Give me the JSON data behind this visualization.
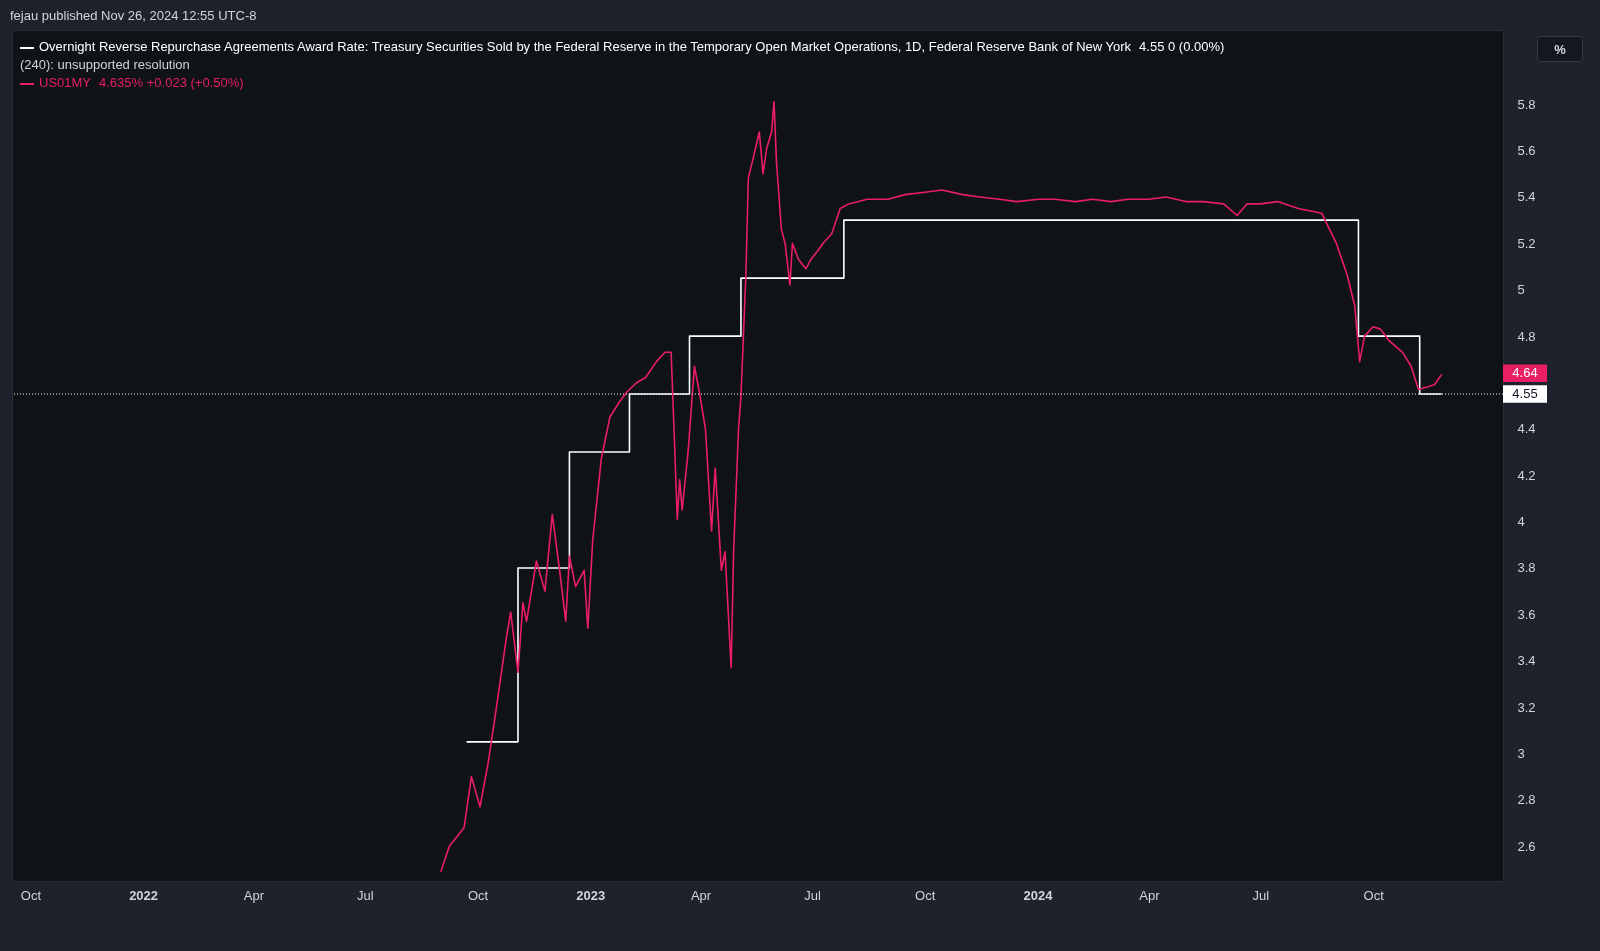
{
  "chart_data": {
    "type": "line",
    "subtitle": "fejau published Nov 26, 2024 12:55 UTC-8",
    "series": [
      {
        "name": "Overnight Reverse Repurchase Agreements Award Rate: Treasury Securities Sold by the Federal Reserve in the Temporary Open Market Operations, 1D, Federal Reserve Bank of New York",
        "type": "step",
        "color": "#ffffff",
        "x": [
          "2022-09-22",
          "2022-11-03",
          "2022-12-15",
          "2023-02-02",
          "2023-03-23",
          "2023-05-04",
          "2023-07-27",
          "2024-09-19",
          "2024-11-08",
          "2024-11-26"
        ],
        "values": [
          3.05,
          3.8,
          4.3,
          4.55,
          4.8,
          5.05,
          5.3,
          4.8,
          4.55,
          4.55
        ]
      },
      {
        "name": "US01MY",
        "color": "#e91e63",
        "x": [
          "2022-09-01",
          "2022-09-08",
          "2022-09-20",
          "2022-09-26",
          "2022-10-03",
          "2022-10-10",
          "2022-10-17",
          "2022-10-24",
          "2022-10-28",
          "2022-11-03",
          "2022-11-07",
          "2022-11-10",
          "2022-11-18",
          "2022-11-25",
          "2022-12-01",
          "2022-12-07",
          "2022-12-12",
          "2022-12-15",
          "2022-12-20",
          "2022-12-27",
          "2022-12-30",
          "2023-01-03",
          "2023-01-10",
          "2023-01-17",
          "2023-01-24",
          "2023-01-31",
          "2023-02-08",
          "2023-02-15",
          "2023-02-24",
          "2023-03-03",
          "2023-03-08",
          "2023-03-10",
          "2023-03-13",
          "2023-03-15",
          "2023-03-17",
          "2023-03-22",
          "2023-03-27",
          "2023-03-31",
          "2023-04-05",
          "2023-04-10",
          "2023-04-13",
          "2023-04-18",
          "2023-04-21",
          "2023-04-26",
          "2023-04-28",
          "2023-05-02",
          "2023-05-04",
          "2023-05-08",
          "2023-05-10",
          "2023-05-15",
          "2023-05-19",
          "2023-05-22",
          "2023-05-25",
          "2023-05-29",
          "2023-05-31",
          "2023-06-02",
          "2023-06-06",
          "2023-06-09",
          "2023-06-13",
          "2023-06-15",
          "2023-06-20",
          "2023-06-26",
          "2023-06-30",
          "2023-07-06",
          "2023-07-10",
          "2023-07-17",
          "2023-07-24",
          "2023-07-31",
          "2023-08-15",
          "2023-09-01",
          "2023-09-15",
          "2023-10-01",
          "2023-10-15",
          "2023-11-01",
          "2023-11-15",
          "2023-12-01",
          "2023-12-15",
          "2024-01-02",
          "2024-01-15",
          "2024-02-01",
          "2024-02-15",
          "2024-03-01",
          "2024-03-15",
          "2024-04-01",
          "2024-04-15",
          "2024-05-01",
          "2024-05-15",
          "2024-06-01",
          "2024-06-12",
          "2024-06-20",
          "2024-07-01",
          "2024-07-15",
          "2024-08-01",
          "2024-08-20",
          "2024-09-01",
          "2024-09-10",
          "2024-09-16",
          "2024-09-20",
          "2024-09-24",
          "2024-10-01",
          "2024-10-07",
          "2024-10-14",
          "2024-10-25",
          "2024-11-01",
          "2024-11-07",
          "2024-11-14",
          "2024-11-20",
          "2024-11-26"
        ],
        "values": [
          2.49,
          2.6,
          2.68,
          2.9,
          2.77,
          2.97,
          3.22,
          3.48,
          3.61,
          3.35,
          3.65,
          3.57,
          3.83,
          3.7,
          4.03,
          3.79,
          3.57,
          3.85,
          3.72,
          3.79,
          3.54,
          3.92,
          4.27,
          4.45,
          4.51,
          4.56,
          4.6,
          4.62,
          4.69,
          4.73,
          4.73,
          4.45,
          4.01,
          4.18,
          4.05,
          4.31,
          4.67,
          4.56,
          4.4,
          3.96,
          4.23,
          3.79,
          3.87,
          3.37,
          3.87,
          4.4,
          4.54,
          5.06,
          5.48,
          5.59,
          5.68,
          5.5,
          5.61,
          5.68,
          5.81,
          5.55,
          5.26,
          5.2,
          5.02,
          5.2,
          5.13,
          5.09,
          5.13,
          5.17,
          5.2,
          5.24,
          5.35,
          5.37,
          5.39,
          5.39,
          5.41,
          5.42,
          5.43,
          5.41,
          5.4,
          5.39,
          5.38,
          5.39,
          5.39,
          5.38,
          5.39,
          5.38,
          5.39,
          5.39,
          5.4,
          5.38,
          5.38,
          5.37,
          5.32,
          5.37,
          5.37,
          5.38,
          5.35,
          5.33,
          5.2,
          5.06,
          4.93,
          4.69,
          4.8,
          4.84,
          4.83,
          4.78,
          4.73,
          4.67,
          4.57,
          4.58,
          4.59,
          4.635
        ]
      }
    ],
    "xlim": [
      "2021-09-16",
      "2025-01-15"
    ],
    "xticks": [
      {
        "value": "2021-10-01",
        "label": "Oct"
      },
      {
        "value": "2022-01-01",
        "label": "2022"
      },
      {
        "value": "2022-04-01",
        "label": "Apr"
      },
      {
        "value": "2022-07-01",
        "label": "Jul"
      },
      {
        "value": "2022-10-01",
        "label": "Oct"
      },
      {
        "value": "2023-01-01",
        "label": "2023"
      },
      {
        "value": "2023-04-01",
        "label": "Apr"
      },
      {
        "value": "2023-07-01",
        "label": "Jul"
      },
      {
        "value": "2023-10-01",
        "label": "Oct"
      },
      {
        "value": "2024-01-01",
        "label": "2024"
      },
      {
        "value": "2024-04-01",
        "label": "Apr"
      },
      {
        "value": "2024-07-01",
        "label": "Jul"
      },
      {
        "value": "2024-10-01",
        "label": "Oct"
      }
    ],
    "ylim": [
      2.45,
      6.12
    ],
    "yticks": [
      2.6,
      2.8,
      3,
      3.2,
      3.4,
      3.6,
      3.8,
      4,
      4.2,
      4.4,
      4.8,
      5,
      5.2,
      5.4,
      5.6,
      5.8
    ],
    "grid": false,
    "legend": "top left",
    "ref_lines": [
      {
        "axis": "y",
        "value": 4.55,
        "label": "4.55",
        "color": "#ffffff",
        "line_style": "dotted"
      }
    ],
    "annotations": [
      "4.55  0 (0.00%)",
      "(240): unsupported resolution",
      "4.635%  +0.023 (+0.50%)",
      "%",
      {
        "text": "4.64",
        "y": 4.64
      }
    ]
  }
}
